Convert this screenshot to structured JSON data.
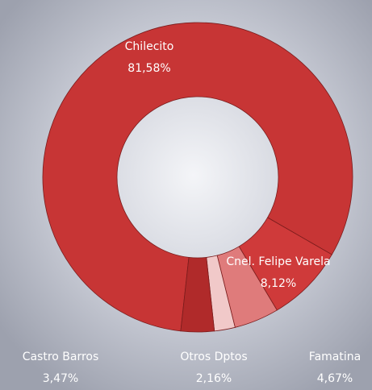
{
  "chart_data": {
    "type": "donut",
    "categories": [
      "Chilecito",
      "Cnel. Felipe Varela",
      "Famatina",
      "Otros Dptos",
      "Castro Barros"
    ],
    "values": [
      81.58,
      8.12,
      4.67,
      2.16,
      3.47
    ],
    "value_labels": [
      "81,58%",
      "8,12%",
      "4,67%",
      "2,16%",
      "3,47%"
    ],
    "colors": [
      "#c73535",
      "#cf3a3a",
      "#df7b7b",
      "#f1c9c9",
      "#b02a2a"
    ]
  }
}
